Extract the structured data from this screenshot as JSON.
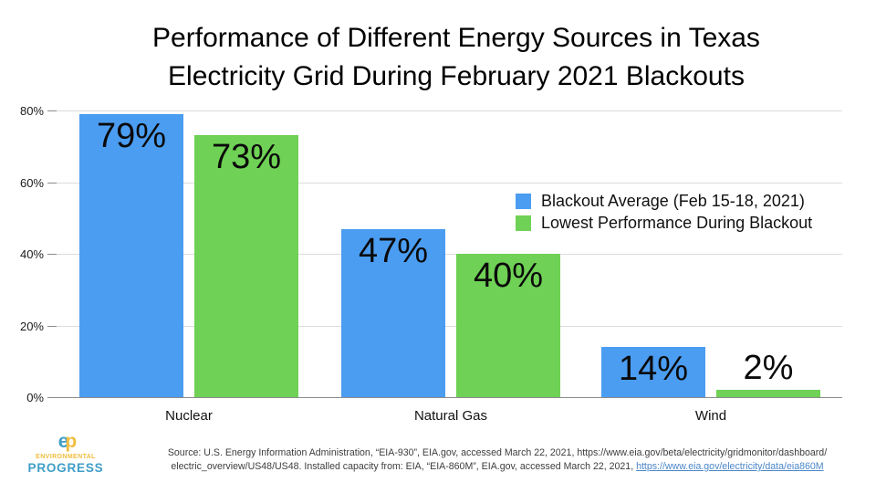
{
  "title": {
    "line1": "Performance of Different Energy Sources in Texas",
    "line2": "Electricity Grid During February 2021 Blackouts"
  },
  "chart_data": {
    "type": "bar",
    "title": "Performance of Different Energy Sources in Texas Electricity Grid During February 2021 Blackouts",
    "categories": [
      "Nuclear",
      "Natural Gas",
      "Wind"
    ],
    "series": [
      {
        "name": "Blackout Average (Feb 15-18, 2021)",
        "color": "#4b9df1",
        "values": [
          79,
          47,
          14
        ],
        "display_values": [
          "79%",
          "47%",
          "14%"
        ]
      },
      {
        "name": "Lowest Performance During Blackout",
        "color": "#6fd155",
        "values": [
          73,
          40,
          2
        ],
        "display_values": [
          "73%",
          "40%",
          "2%"
        ]
      }
    ],
    "xlabel": "",
    "ylabel": "",
    "ylim": [
      0,
      80
    ],
    "yticks": [
      0,
      20,
      40,
      60,
      80
    ],
    "ytick_labels": [
      "0%",
      "20%",
      "40%",
      "60%",
      "80%"
    ],
    "grid": true,
    "legend_position": "middle-right",
    "colors": {
      "gridline": "#dcdcdc",
      "axis": "#8c8c8c"
    }
  },
  "source": {
    "line1": "Source: U.S. Energy Information Administration, “EIA-930”, EIA.gov, accessed March 22, 2021, https://www.eia.gov/beta/electricity/gridmonitor/dashboard/",
    "line2_text": "electric_overview/US48/US48. Installed capacity from: EIA, “EIA-860M”, EIA.gov, accessed March 22, 2021, ",
    "line2_link": "https://www.eia.gov/electricity/data/eia860M",
    "link_color": "#4a86c8"
  },
  "logo": {
    "mono_e": "e",
    "mono_p": "p",
    "line1": "ENVIRONMENTAL",
    "line2": "PROGRESS",
    "blue": "#3f9ec6",
    "yellow": "#f0be3e"
  }
}
